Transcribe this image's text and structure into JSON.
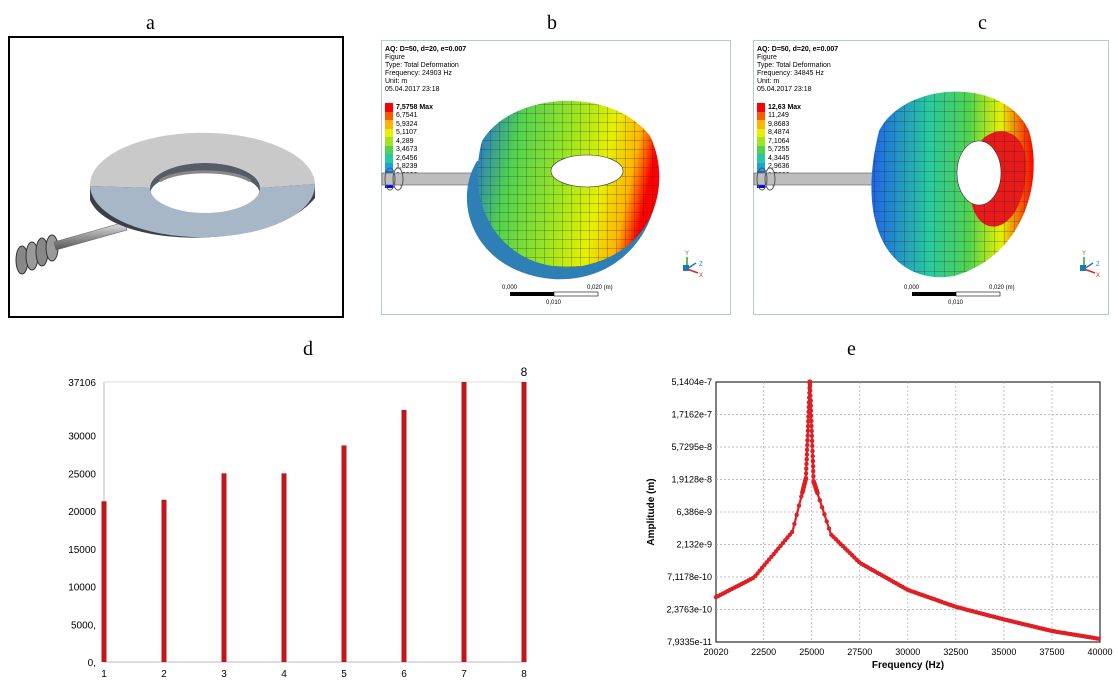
{
  "labels": {
    "a": "a",
    "b": "b",
    "c": "c",
    "d": "d",
    "e": "e"
  },
  "sim_b": {
    "header": [
      "AQ: D=50, d=20, e=0.007",
      "Figure",
      "Type: Total Deformation",
      "Frequency: 24903 Hz",
      "Unit: m",
      "05.04.2017 23:18"
    ],
    "legend_values": [
      "7,5758 Max",
      "6,7541",
      "5,9324",
      "5,1107",
      "4,289",
      "3,4673",
      "2,6456",
      "1,8239",
      "1,0022",
      "0,1805 Min"
    ],
    "scale_left": "0,000",
    "scale_right": "0,020 (m)",
    "scale_mid": "0,010",
    "axis_y": "Y",
    "axis_z": "Z",
    "axis_x": "X"
  },
  "sim_c": {
    "header": [
      "AQ: D=50, d=20, e=0.007",
      "Figure",
      "Type: Total Deformation",
      "Frequency: 34845 Hz",
      "Unit: m",
      "05.04.2017 23:18"
    ],
    "legend_values": [
      "12,63 Max",
      "11,249",
      "9,8683",
      "8,4874",
      "7,1064",
      "5,7255",
      "4,3445",
      "2,9636",
      "1,5826",
      "0,20164 Min"
    ],
    "scale_left": "0,000",
    "scale_right": "0,020 (m)",
    "scale_mid": "0,010",
    "axis_y": "Y",
    "axis_z": "Z",
    "axis_x": "X"
  },
  "legend_colors": [
    "#ff0000",
    "#ff5a00",
    "#ffb400",
    "#e6f000",
    "#a0e61e",
    "#50d250",
    "#28c8a0",
    "#1ea0dc",
    "#1e64e6",
    "#0000ff"
  ],
  "chart_data": [
    {
      "type": "bar",
      "panel": "d",
      "categories": [
        "1",
        "2",
        "3",
        "4",
        "5",
        "6",
        "7",
        "8"
      ],
      "values": [
        21300,
        21500,
        25000,
        25000,
        28700,
        33400,
        37106,
        37106
      ],
      "ytick_labels": [
        "0,",
        "5000,",
        "10000",
        "15000",
        "20000",
        "25000",
        "30000",
        "37106"
      ],
      "ytick_values": [
        0,
        5000,
        10000,
        15000,
        20000,
        25000,
        30000,
        37106
      ],
      "ylim": [
        0,
        37106
      ],
      "annotation": "8",
      "bar_color": "#c0171d"
    },
    {
      "type": "line",
      "panel": "e",
      "xlabel": "Frequency (Hz)",
      "ylabel": "Amplitude (m)",
      "xtick_labels": [
        "20020",
        "22500",
        "25000",
        "27500",
        "30000",
        "32500",
        "35000",
        "37500",
        "40000"
      ],
      "xtick_values": [
        20020,
        22500,
        25000,
        27500,
        30000,
        32500,
        35000,
        37500,
        40000
      ],
      "ytick_labels": [
        "5,1404e-7",
        "1,7162e-7",
        "5,7295e-8",
        "1,9128e-8",
        "6,386e-9",
        "2,132e-9",
        "7,1178e-10",
        "2,3763e-10",
        "7,9335e-11"
      ],
      "xlim": [
        20020,
        40000
      ],
      "ylim": [
        7.9335e-11,
        5.1404e-07
      ],
      "yscale": "log",
      "grid": true,
      "line_color": "#dd1f26",
      "peak_x": 24903,
      "peak_y": 5.1404e-07,
      "sample_points": [
        [
          20020,
          3.6e-10
        ],
        [
          22000,
          7e-10
        ],
        [
          24000,
          3.3e-09
        ],
        [
          24700,
          2e-08
        ],
        [
          24903,
          5.1404e-07
        ],
        [
          25100,
          1.8e-08
        ],
        [
          26000,
          3e-09
        ],
        [
          27500,
          1.15e-09
        ],
        [
          30000,
          4.6e-10
        ],
        [
          32500,
          2.6e-10
        ],
        [
          35000,
          1.7e-10
        ],
        [
          37500,
          1.15e-10
        ],
        [
          40000,
          8.8e-11
        ]
      ]
    }
  ]
}
